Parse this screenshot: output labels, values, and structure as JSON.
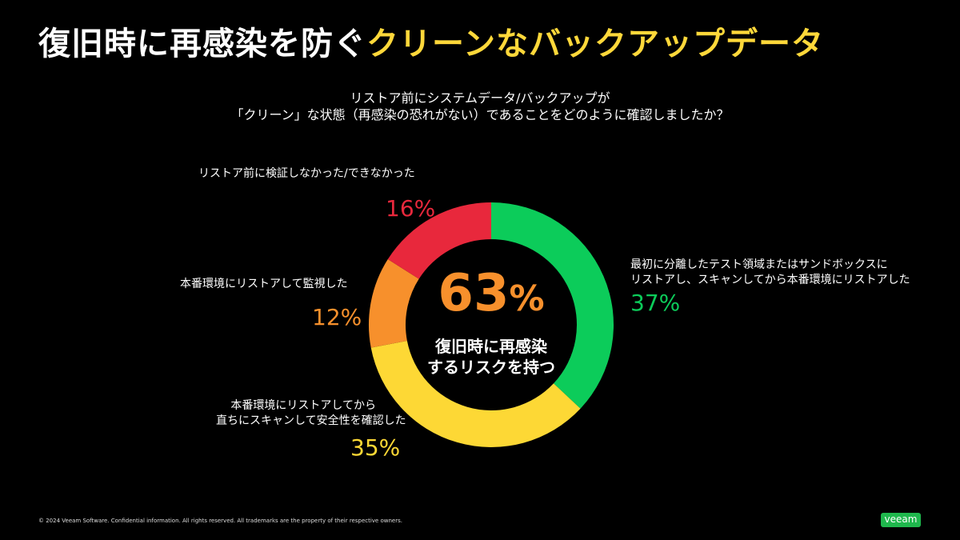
{
  "title": {
    "main": "復旧時に再感染を防ぐ",
    "highlight": "クリーンなバックアップデータ"
  },
  "question": {
    "line1": "リストア前にシステムデータ/バックアップが",
    "line2": "「クリーン」な状態（再感染の恐れがない）であることをどのように確認しましたか？"
  },
  "center": {
    "value": "63",
    "unit": "%",
    "line1": "復旧時に再感染",
    "line2": "するリスクを持つ"
  },
  "chart_data": {
    "type": "pie",
    "donut": true,
    "start": "top-clockwise",
    "slices": [
      {
        "label_lines": [
          "最初に分離したテスト領域またはサンドボックスに",
          "リストアし、スキャンしてから本番環境にリストアした"
        ],
        "value": 37,
        "text": "37%",
        "color": "#0ccc5a"
      },
      {
        "label_lines": [
          "本番環境にリストアしてから",
          "直ちにスキャンして安全性を確認した"
        ],
        "value": 35,
        "text": "35%",
        "color": "#fdd835"
      },
      {
        "label_lines": [
          "本番環境にリストアして監視した"
        ],
        "value": 12,
        "text": "12%",
        "color": "#f7902c"
      },
      {
        "label_lines": [
          "リストア前に検証しなかった/できなかった"
        ],
        "value": 16,
        "text": "16%",
        "color": "#e8283c"
      }
    ]
  },
  "footer": {
    "copyright": "© 2024 Veeam Software. Confidential information. All rights reserved. All trademarks are the property of their respective owners.",
    "logo": "veeam"
  }
}
